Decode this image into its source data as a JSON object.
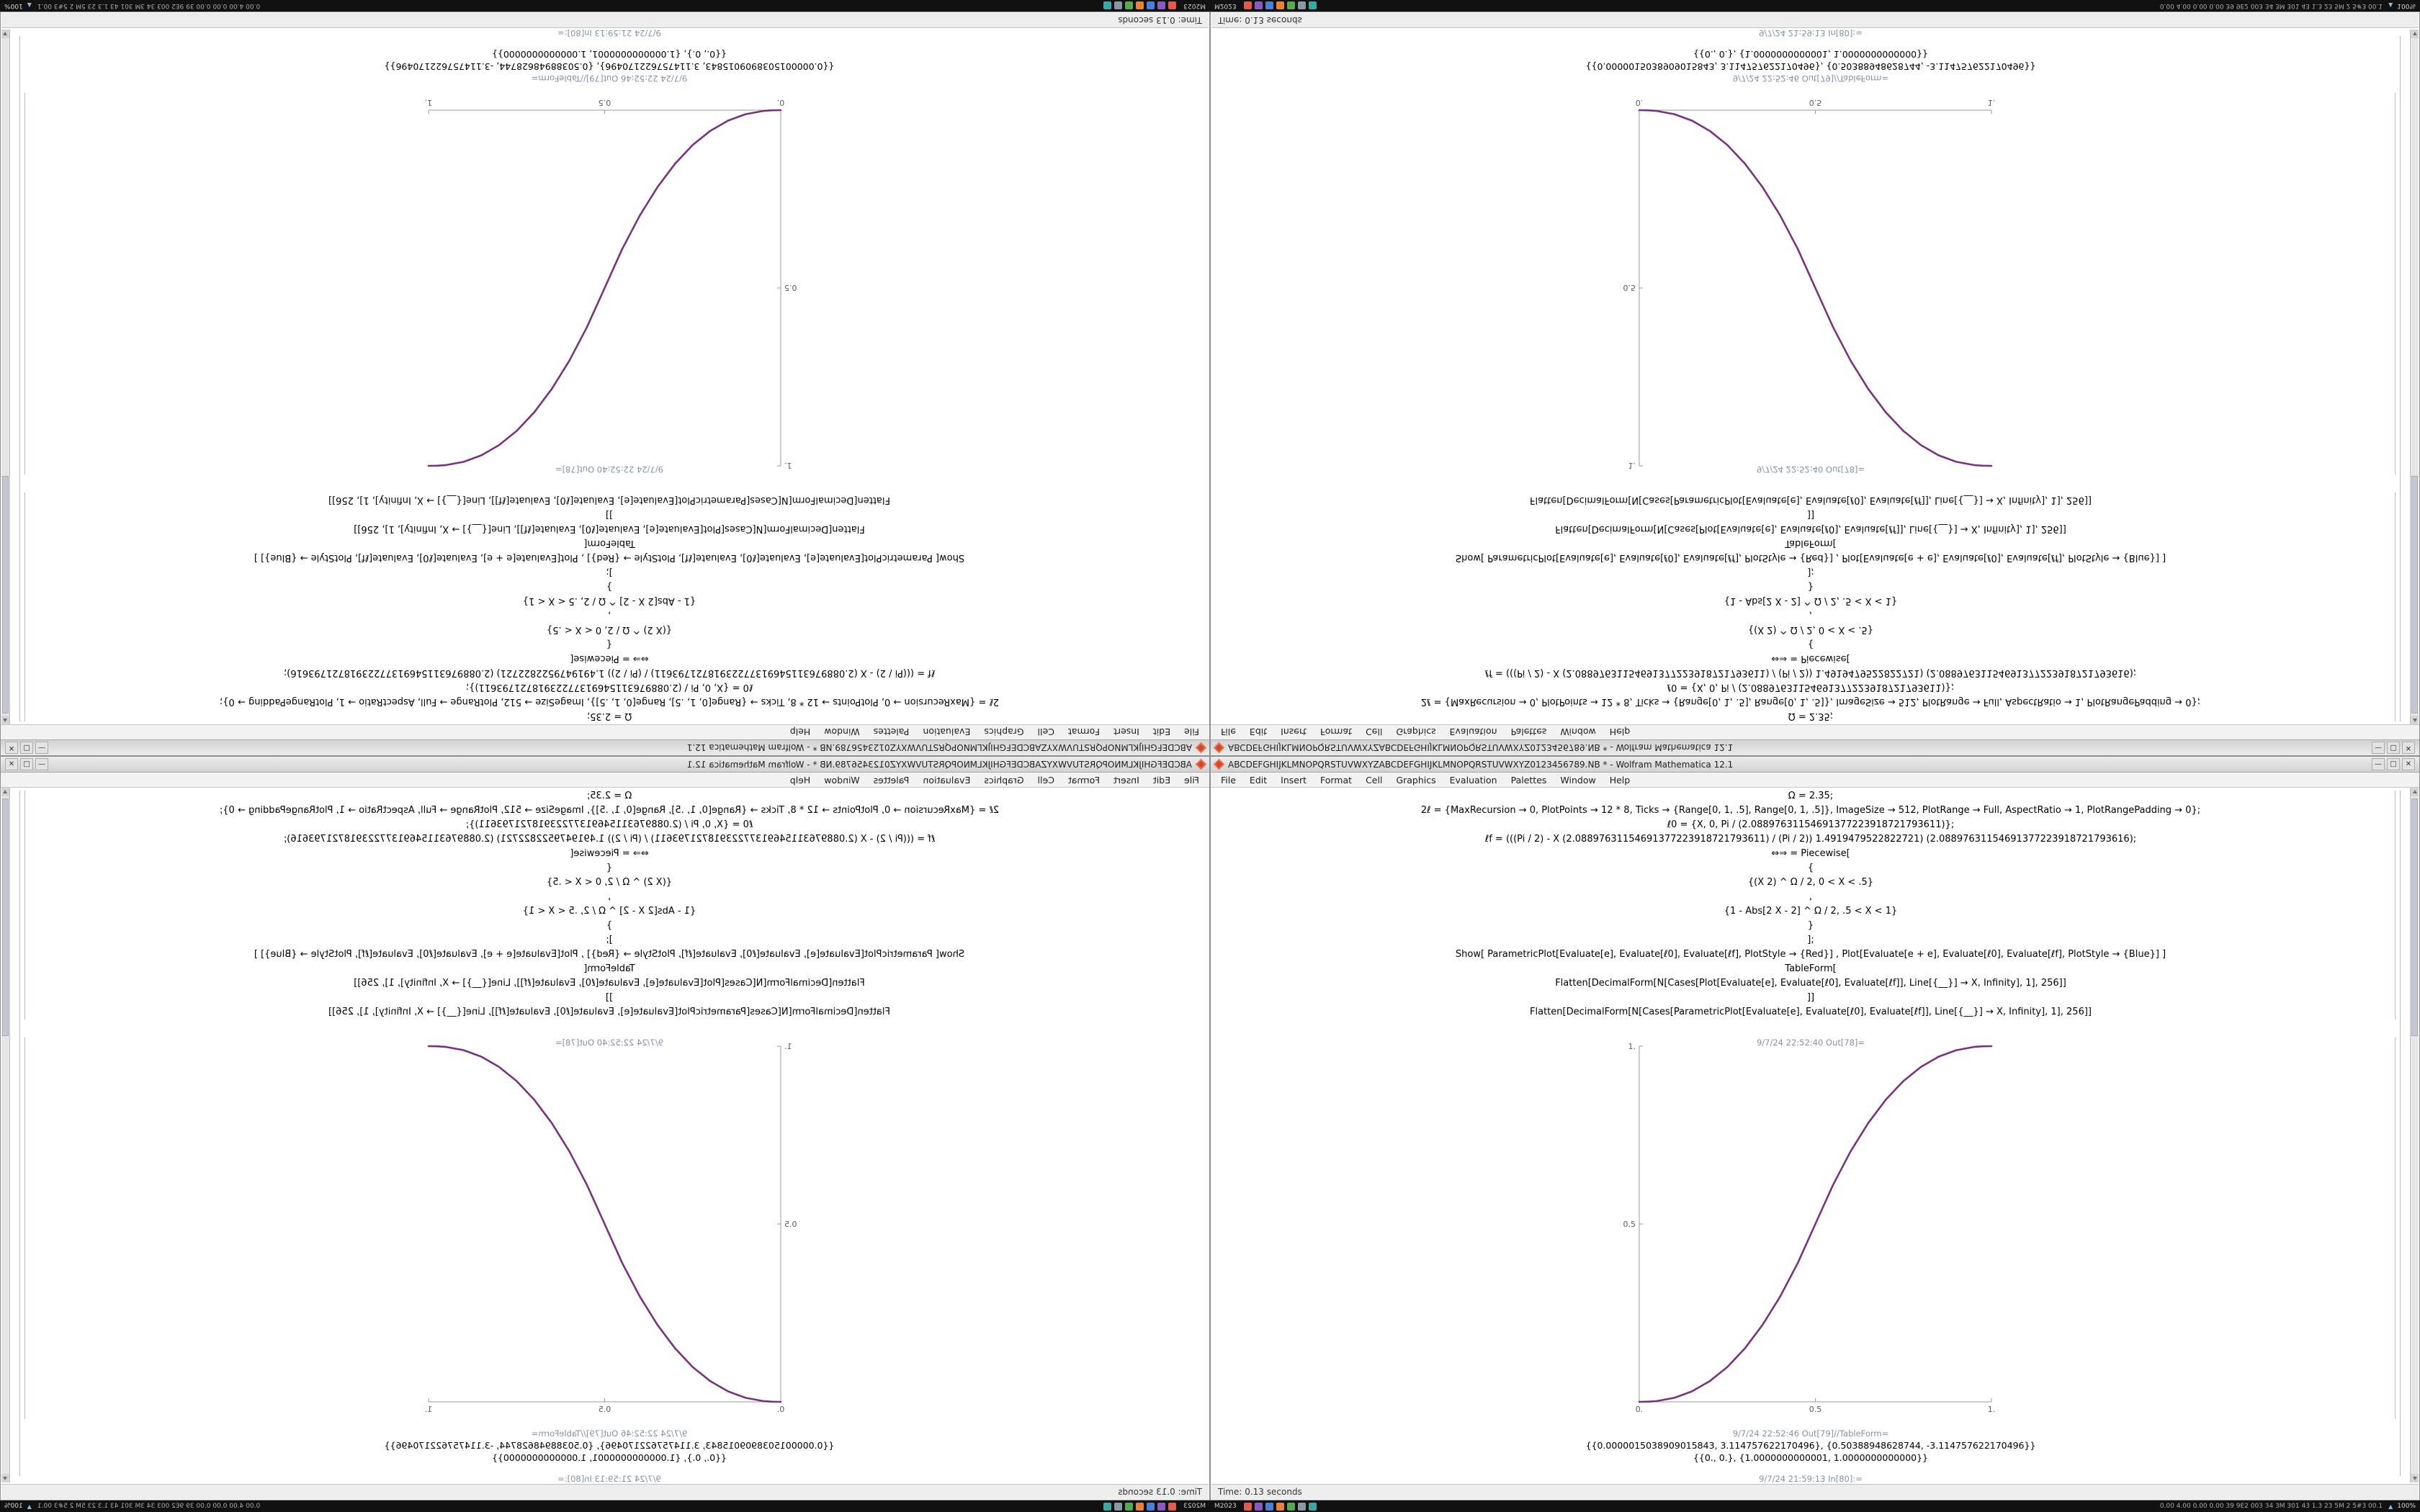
{
  "colors": {
    "titlebar_bg": "#d9d9d9",
    "window_bg": "#ffffff",
    "taskbar_bg": "#111111",
    "cell_label": "#8293ab",
    "app_icon": "#d04a2a",
    "curve_red": "#cc2222",
    "curve_blue": "#3344cc"
  },
  "window": {
    "title": "ABCDEFGHIJKLMNOPQRSTUVWXYZABCDEFGHIJKLMNOPQRSTUVWXYZ0123456789.NB * - Wolfram Mathematica 12.1",
    "controls": {
      "minimize": "—",
      "maximize": "□",
      "close": "✕"
    }
  },
  "menubar": {
    "items": [
      "File",
      "Edit",
      "Insert",
      "Format",
      "Cell",
      "Graphics",
      "Evaluation",
      "Palettes",
      "Window",
      "Help"
    ]
  },
  "notebook": {
    "code_lines": [
      "Ω = 2.35;",
      "2ℓ = {MaxRecursion → 0, PlotPoints → 12 * 8, Ticks → {Range[0, 1, .5], Range[0, 1, .5]}, ImageSize → 512, PlotRange → Full, AspectRatio → 1, PlotRangePadding → 0};",
      "ℓ0 = {X, 0, Pi / (2.08897631154691377223918721793611)};",
      "ℓf = (((Pi / 2) - X (2.08897631154691377223918721793611) / (Pi / 2)) 1.4919479522822721) (2.08897631154691377223918721793616);",
      "⇔⇒ = Piecewise[",
      "{",
      "{(X 2) ^ Ω / 2, 0 < X < .5}",
      ",",
      "{1 - Abs[2 X - 2] ^ Ω / 2, .5 < X < 1}",
      "}",
      "];",
      "Show[   ParametricPlot[Evaluate[e], Evaluate[ℓ0], Evaluate[ℓf], PlotStyle → {Red}] ,   Plot[Evaluate[e + e], Evaluate[ℓ0], Evaluate[ℓf], PlotStyle → {Blue}]  ]",
      "TableForm[",
      "Flatten[DecimalForm[N[Cases[Plot[Evaluate[e], Evaluate[ℓ0], Evaluate[ℓf]], Line[{__}] → X, Infinity], 1], 256]]",
      "]]",
      "Flatten[DecimalForm[N[Cases[ParametricPlot[Evaluate[e], Evaluate[ℓ0], Evaluate[ℓf]], Line[{__}] → X, Infinity], 1], 256]]"
    ],
    "out_label_plot": "9/7/24 22:52:40 Out[78]=",
    "out_label_table": "9/7/24 22:52:46 Out[79]//TableForm=",
    "out_table_row1": "{{0.0000015038909015843, 3.114757622170496}, {0.50388948628744, -3.114757622170496}}",
    "out_table_row2": "{{0., 0.}, {1.0000000000001, 1.0000000000000}}",
    "next_in_label": "9/7/24 21:59:13 In[80]:="
  },
  "statusbar": {
    "left": "Time: 0.13 seconds"
  },
  "taskbar": {
    "left_text": "M2023",
    "icons": [
      {
        "name": "app-red",
        "color": "#e05a4e"
      },
      {
        "name": "app-purple",
        "color": "#8a5ac2"
      },
      {
        "name": "app-blue",
        "color": "#4a7fd4"
      },
      {
        "name": "app-orange",
        "color": "#e8823a"
      },
      {
        "name": "app-green",
        "color": "#57a84f"
      },
      {
        "name": "app-gray",
        "color": "#8a97a5"
      },
      {
        "name": "app-teal",
        "color": "#3aa8a0"
      }
    ],
    "right_stats": "0.00 4.00 0.00 0.00 39 9E2 003 34 3M 301 43 1.3 23 5M 2 5#3 00.1",
    "tray_arrow": "▲",
    "right_end": "100%"
  },
  "chart_data": {
    "type": "line",
    "title": "",
    "xlabel": "",
    "ylabel": "",
    "xlim": [
      0,
      1
    ],
    "ylim": [
      0,
      1
    ],
    "xticks": [
      "0.",
      "0.5",
      "1."
    ],
    "yticks": [
      "0.5",
      "1."
    ],
    "grid": false,
    "legend": "none",
    "description": "Piecewise smoothstep S-curve: (2x)^2.35/2 for x<0.5, 1-(2-2x)^2.35/2 for x>0.5; red and blue plots overlap giving a magenta curve",
    "x": [
      0,
      0.025,
      0.05,
      0.1,
      0.15,
      0.2,
      0.25,
      0.3,
      0.35,
      0.4,
      0.45,
      0.5,
      0.55,
      0.6,
      0.65,
      0.7,
      0.75,
      0.8,
      0.85,
      0.9,
      0.95,
      0.975,
      1
    ],
    "series": [
      {
        "name": "ParametricPlot (Red)",
        "color": "#cc2222",
        "values": [
          0,
          0.0004,
          0.0022,
          0.0114,
          0.0295,
          0.058,
          0.098,
          0.1505,
          0.2162,
          0.296,
          0.3903,
          0.5,
          0.6097,
          0.704,
          0.7838,
          0.8495,
          0.902,
          0.942,
          0.9705,
          0.9886,
          0.9978,
          0.9996,
          1
        ]
      },
      {
        "name": "Plot (Blue)",
        "color": "#3344cc",
        "values": [
          0,
          0.0004,
          0.0022,
          0.0114,
          0.0295,
          0.058,
          0.098,
          0.1505,
          0.2162,
          0.296,
          0.3903,
          0.5,
          0.6097,
          0.704,
          0.7838,
          0.8495,
          0.902,
          0.942,
          0.9705,
          0.9886,
          0.9978,
          0.9996,
          1
        ]
      }
    ]
  }
}
